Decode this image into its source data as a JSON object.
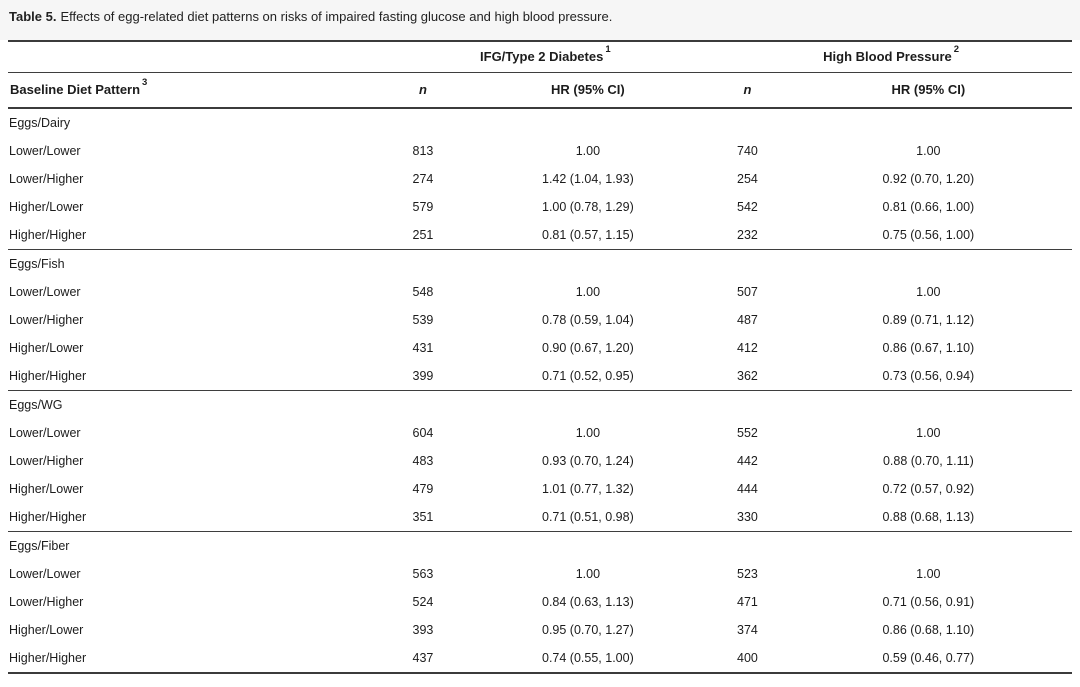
{
  "title": {
    "label": "Table 5.",
    "text": "Effects of egg-related diet patterns on risks of impaired fasting glucose and high blood pressure."
  },
  "colors": {
    "background": "#ffffff",
    "caption_band": "#f6f6f6",
    "text": "#1c1c1c",
    "rule_heavy": "#3b3b3b",
    "rule_light": "#3e3e3e"
  },
  "table": {
    "group_headers": [
      {
        "text": "IFG/Type 2 Diabetes",
        "superscript": "1"
      },
      {
        "text": "High Blood Pressure",
        "superscript": "2"
      }
    ],
    "column_headers": {
      "diet_pattern": {
        "text": "Baseline Diet Pattern",
        "superscript": "3"
      },
      "ifg_n": "n",
      "ifg_hr": "HR (95% CI)",
      "hbp_n": "n",
      "hbp_hr": "HR (95% CI)"
    },
    "sections": [
      {
        "label": "Eggs/Dairy",
        "rows": [
          {
            "pattern": "Lower/Lower",
            "ifg_n": "813",
            "ifg_hr": "1.00",
            "hbp_n": "740",
            "hbp_hr": "1.00"
          },
          {
            "pattern": "Lower/Higher",
            "ifg_n": "274",
            "ifg_hr": "1.42 (1.04, 1.93)",
            "hbp_n": "254",
            "hbp_hr": "0.92 (0.70, 1.20)"
          },
          {
            "pattern": "Higher/Lower",
            "ifg_n": "579",
            "ifg_hr": "1.00 (0.78, 1.29)",
            "hbp_n": "542",
            "hbp_hr": "0.81 (0.66, 1.00)"
          },
          {
            "pattern": "Higher/Higher",
            "ifg_n": "251",
            "ifg_hr": "0.81 (0.57, 1.15)",
            "hbp_n": "232",
            "hbp_hr": "0.75 (0.56, 1.00)"
          }
        ]
      },
      {
        "label": "Eggs/Fish",
        "rows": [
          {
            "pattern": "Lower/Lower",
            "ifg_n": "548",
            "ifg_hr": "1.00",
            "hbp_n": "507",
            "hbp_hr": "1.00"
          },
          {
            "pattern": "Lower/Higher",
            "ifg_n": "539",
            "ifg_hr": "0.78 (0.59, 1.04)",
            "hbp_n": "487",
            "hbp_hr": "0.89 (0.71, 1.12)"
          },
          {
            "pattern": "Higher/Lower",
            "ifg_n": "431",
            "ifg_hr": "0.90 (0.67, 1.20)",
            "hbp_n": "412",
            "hbp_hr": "0.86 (0.67, 1.10)"
          },
          {
            "pattern": "Higher/Higher",
            "ifg_n": "399",
            "ifg_hr": "0.71 (0.52, 0.95)",
            "hbp_n": "362",
            "hbp_hr": "0.73 (0.56, 0.94)"
          }
        ]
      },
      {
        "label": "Eggs/WG",
        "rows": [
          {
            "pattern": "Lower/Lower",
            "ifg_n": "604",
            "ifg_hr": "1.00",
            "hbp_n": "552",
            "hbp_hr": "1.00"
          },
          {
            "pattern": "Lower/Higher",
            "ifg_n": "483",
            "ifg_hr": "0.93 (0.70, 1.24)",
            "hbp_n": "442",
            "hbp_hr": "0.88 (0.70, 1.11)"
          },
          {
            "pattern": "Higher/Lower",
            "ifg_n": "479",
            "ifg_hr": "1.01 (0.77, 1.32)",
            "hbp_n": "444",
            "hbp_hr": "0.72 (0.57, 0.92)"
          },
          {
            "pattern": "Higher/Higher",
            "ifg_n": "351",
            "ifg_hr": "0.71 (0.51, 0.98)",
            "hbp_n": "330",
            "hbp_hr": "0.88 (0.68, 1.13)"
          }
        ]
      },
      {
        "label": "Eggs/Fiber",
        "rows": [
          {
            "pattern": "Lower/Lower",
            "ifg_n": "563",
            "ifg_hr": "1.00",
            "hbp_n": "523",
            "hbp_hr": "1.00"
          },
          {
            "pattern": "Lower/Higher",
            "ifg_n": "524",
            "ifg_hr": "0.84 (0.63, 1.13)",
            "hbp_n": "471",
            "hbp_hr": "0.71 (0.56, 0.91)"
          },
          {
            "pattern": "Higher/Lower",
            "ifg_n": "393",
            "ifg_hr": "0.95 (0.70, 1.27)",
            "hbp_n": "374",
            "hbp_hr": "0.86 (0.68, 1.10)"
          },
          {
            "pattern": "Higher/Higher",
            "ifg_n": "437",
            "ifg_hr": "0.74 (0.55, 1.00)",
            "hbp_n": "400",
            "hbp_hr": "0.59 (0.46, 0.77)"
          }
        ]
      }
    ]
  }
}
